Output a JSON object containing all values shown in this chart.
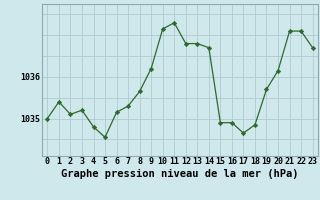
{
  "x": [
    0,
    1,
    2,
    3,
    4,
    5,
    6,
    7,
    8,
    9,
    10,
    11,
    12,
    13,
    14,
    15,
    16,
    17,
    18,
    19,
    20,
    21,
    22,
    23
  ],
  "y": [
    1035.0,
    1035.4,
    1035.1,
    1035.2,
    1034.8,
    1034.55,
    1035.15,
    1035.3,
    1035.65,
    1036.2,
    1037.15,
    1037.3,
    1036.8,
    1036.8,
    1036.7,
    1034.9,
    1034.9,
    1034.65,
    1034.85,
    1035.7,
    1036.15,
    1037.1,
    1037.1,
    1036.7
  ],
  "line_color": "#2d6a2d",
  "marker": "D",
  "marker_size": 2.2,
  "bg_color": "#cfe8eb",
  "grid_color": "#b0cacf",
  "border_color": "#8aacb0",
  "ylabel_left": [
    "1035",
    "1036"
  ],
  "ytick_vals": [
    1035,
    1036
  ],
  "ylim": [
    1034.1,
    1037.75
  ],
  "xlim": [
    -0.5,
    23.5
  ],
  "xlabel": "Graphe pression niveau de la mer (hPa)",
  "xlabel_fontsize": 7.5,
  "tick_fontsize": 6.0,
  "fig_bg": "#cfe8eb"
}
